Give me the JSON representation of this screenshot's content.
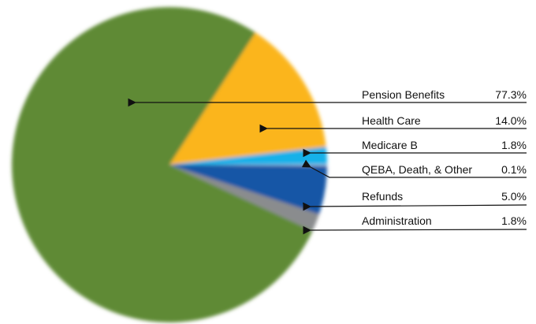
{
  "chart_data": {
    "type": "pie",
    "categories": [
      "Pension Benefits",
      "Health Care",
      "Medicare B",
      "QEBA, Death, & Other",
      "Refunds",
      "Administration"
    ],
    "values": [
      77.3,
      14.0,
      1.8,
      0.1,
      5.0,
      1.8
    ],
    "value_labels": [
      "77.3%",
      "14.0%",
      "1.8%",
      "0.1%",
      "5.0%",
      "1.8%"
    ],
    "colors": [
      "#5f8a35",
      "#fbb51d",
      "#16b1e9",
      "#d9d9d9",
      "#1957a6",
      "#8a8c8e"
    ]
  }
}
